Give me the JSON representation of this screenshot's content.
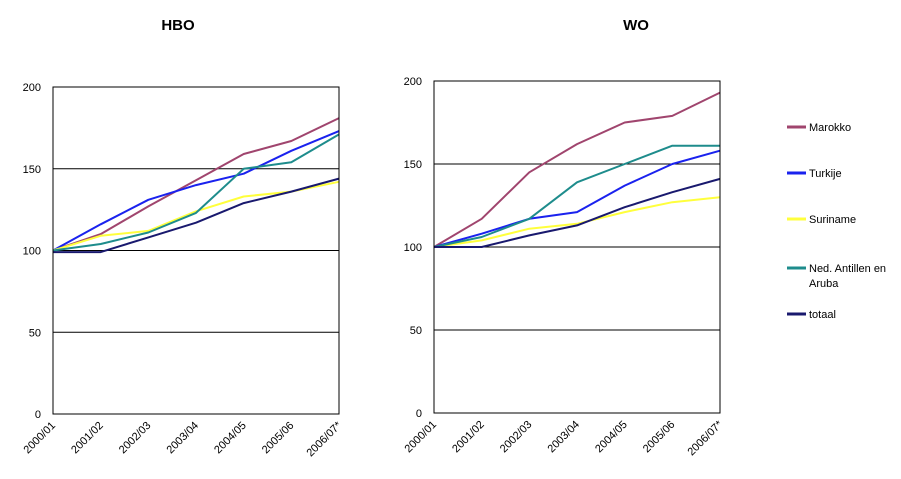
{
  "chart_data": [
    {
      "type": "line",
      "title": "HBO",
      "xlabel": "",
      "ylabel": "",
      "ylim": [
        0,
        200
      ],
      "yticks": [
        0,
        50,
        100,
        150,
        200
      ],
      "grid": true,
      "categories": [
        "2000/01",
        "2001/02",
        "2002/03",
        "2003/04",
        "2004/05",
        "2005/06",
        "2006/07*"
      ],
      "series": [
        {
          "name": "Marokko",
          "values": [
            100,
            110,
            127,
            143,
            159,
            167,
            181
          ]
        },
        {
          "name": "Turkije",
          "values": [
            100,
            116,
            131,
            140,
            147,
            161,
            173
          ]
        },
        {
          "name": "Suriname",
          "values": [
            100,
            109,
            112,
            124,
            133,
            136,
            142
          ]
        },
        {
          "name": "Ned. Antillen en Aruba",
          "values": [
            100,
            104,
            111,
            123,
            150,
            154,
            171
          ]
        },
        {
          "name": "totaal",
          "values": [
            99,
            99,
            108,
            117,
            129,
            136,
            144
          ]
        }
      ]
    },
    {
      "type": "line",
      "title": "WO",
      "xlabel": "",
      "ylabel": "",
      "ylim": [
        0,
        200
      ],
      "yticks": [
        0,
        50,
        100,
        150,
        200
      ],
      "grid": true,
      "legend": "right",
      "categories": [
        "2000/01",
        "2001/02",
        "2002/03",
        "2003/04",
        "2004/05",
        "2005/06",
        "2006/07*"
      ],
      "series": [
        {
          "name": "Marokko",
          "values": [
            100,
            117,
            145,
            162,
            175,
            179,
            193
          ]
        },
        {
          "name": "Turkije",
          "values": [
            100,
            108,
            117,
            121,
            137,
            150,
            158
          ]
        },
        {
          "name": "Suriname",
          "values": [
            100,
            104,
            111,
            114,
            121,
            127,
            130
          ]
        },
        {
          "name": "Ned. Antillen en Aruba",
          "values": [
            100,
            106,
            117,
            139,
            150,
            161,
            161
          ]
        },
        {
          "name": "totaal",
          "values": [
            100,
            100,
            107,
            113,
            124,
            133,
            141
          ]
        }
      ]
    }
  ],
  "legend": {
    "entries": [
      {
        "label": "Marokko",
        "color": "#a0456e"
      },
      {
        "label": "Turkije",
        "color": "#1a22ee"
      },
      {
        "label": "Suriname",
        "color": "#ffff3c"
      },
      {
        "label": "Ned. Antillen en",
        "label2": "Aruba",
        "color": "#1e8c8c"
      },
      {
        "label": "totaal",
        "color": "#19196e"
      }
    ]
  },
  "series_colors": {
    "Marokko": "#a0456e",
    "Turkije": "#1a22ee",
    "Suriname": "#ffff3c",
    "Ned. Antillen en Aruba": "#1e8c8c",
    "totaal": "#19196e"
  }
}
